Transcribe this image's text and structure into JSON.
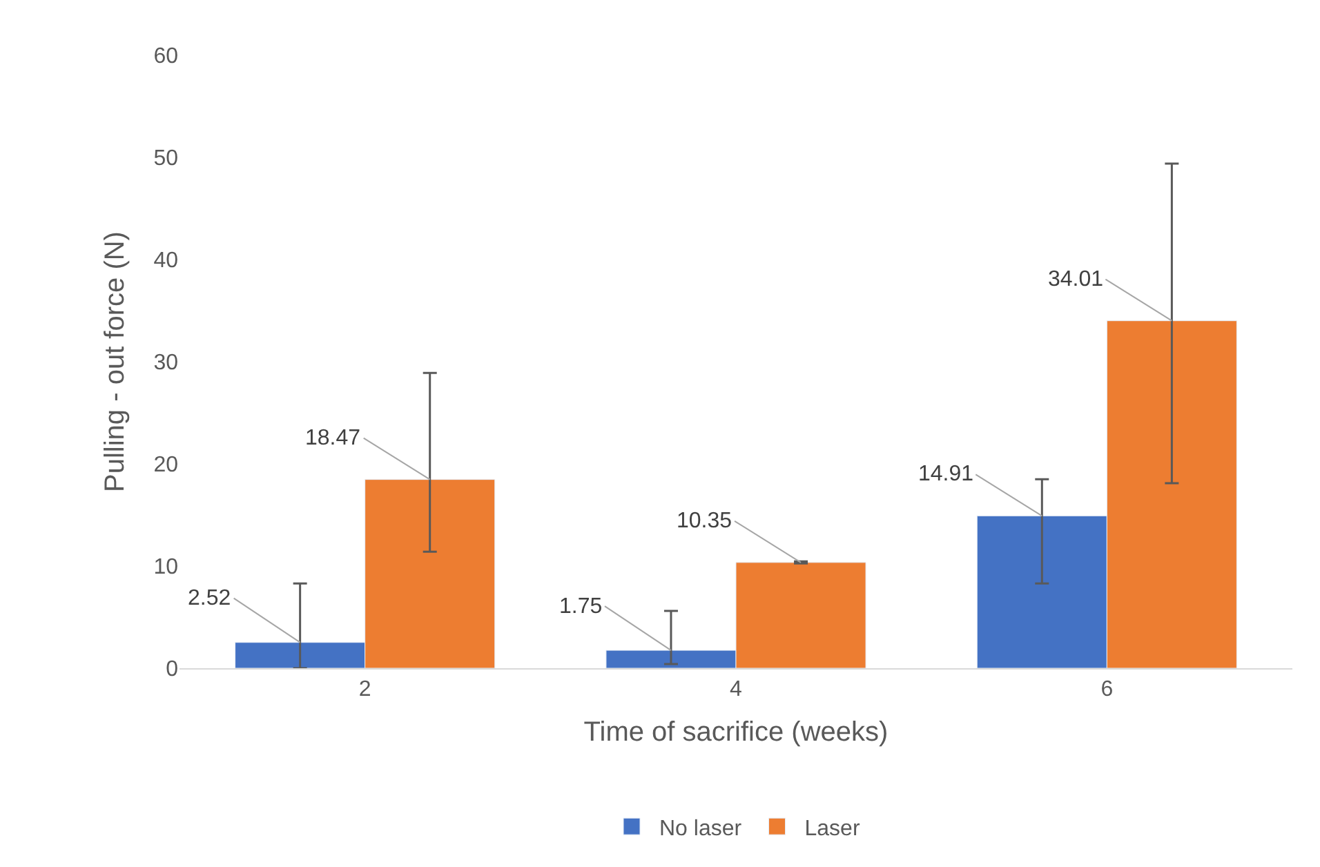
{
  "chart_data": {
    "type": "bar",
    "xlabel": "Time of sacrifice (weeks)",
    "ylabel": "Pulling - out force (N)",
    "categories": [
      "2",
      "4",
      "6"
    ],
    "series": [
      {
        "name": "No laser",
        "color": "#4472c4",
        "values": [
          2.52,
          1.75,
          14.91
        ],
        "errors": [
          [
            0,
            8.3
          ],
          [
            0.4,
            5.6
          ],
          [
            8.3,
            18.5
          ]
        ]
      },
      {
        "name": "Laser",
        "color": "#ed7d31",
        "values": [
          18.47,
          10.35,
          34.01
        ],
        "errors": [
          [
            11.4,
            28.9
          ],
          [
            10.25,
            10.45
          ],
          [
            18.1,
            49.4
          ]
        ]
      }
    ],
    "ylim": [
      0,
      60
    ],
    "yticks": [
      0,
      10,
      20,
      30,
      40,
      50,
      60
    ],
    "legend": "bottom",
    "data_labels": true
  }
}
